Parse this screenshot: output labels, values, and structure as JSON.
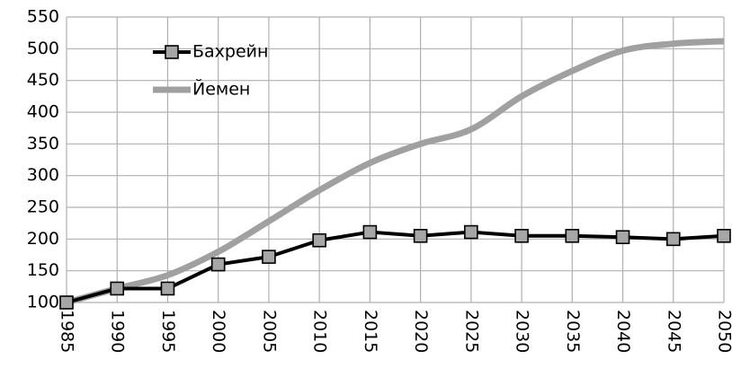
{
  "chart_data": {
    "type": "line",
    "x": [
      1985,
      1990,
      1995,
      2000,
      2005,
      2010,
      2015,
      2020,
      2025,
      2030,
      2035,
      2040,
      2045,
      2050
    ],
    "series": [
      {
        "name": "Бахрейн",
        "color": "#000000",
        "marker": "square",
        "marker_color": "#a6a6a6",
        "smooth": false,
        "values": [
          100,
          122,
          122,
          160,
          172,
          198,
          211,
          205,
          211,
          205,
          205,
          203,
          200,
          205
        ]
      },
      {
        "name": "Йемен",
        "color": "#a0a0a0",
        "marker": "none",
        "smooth": true,
        "values": [
          100,
          122,
          143,
          180,
          228,
          277,
          320,
          350,
          373,
          425,
          465,
          497,
          508,
          512
        ]
      }
    ],
    "xlim": [
      1985,
      2050
    ],
    "xticks": [
      1985,
      1990,
      1995,
      2000,
      2005,
      2010,
      2015,
      2020,
      2025,
      2030,
      2035,
      2040,
      2045,
      2050
    ],
    "ylim": [
      100,
      550
    ],
    "yticks": [
      100,
      150,
      200,
      250,
      300,
      350,
      400,
      450,
      500,
      550
    ],
    "grid": true,
    "legend": "top-left"
  }
}
